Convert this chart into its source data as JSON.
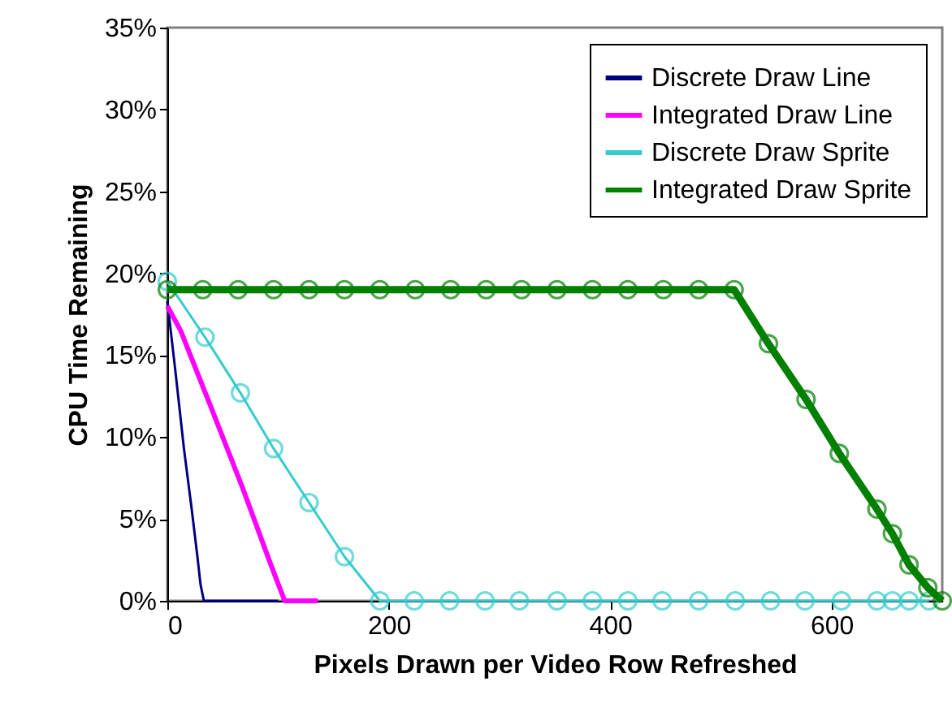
{
  "chart_data": {
    "type": "line",
    "xlabel": "Pixels Drawn per Video Row Refreshed",
    "ylabel": "CPU Time Remaining",
    "xlim": [
      0,
      700
    ],
    "xticks": [
      0,
      200,
      400,
      600
    ],
    "ylim": [
      0,
      35
    ],
    "yticks": [
      {
        "value": 0,
        "label": "0%"
      },
      {
        "value": 5,
        "label": "5%"
      },
      {
        "value": 10,
        "label": "10%"
      },
      {
        "value": 15,
        "label": "15%"
      },
      {
        "value": 20,
        "label": "20%"
      },
      {
        "value": 25,
        "label": "25%"
      },
      {
        "value": 30,
        "label": "30%"
      },
      {
        "value": 35,
        "label": "35%"
      }
    ],
    "grid": false,
    "legend": "top right",
    "series": [
      {
        "name": "Discrete Draw Line",
        "color": "#000080",
        "marker": "none",
        "x": [
          0,
          7,
          15,
          22,
          27,
          30,
          33,
          100
        ],
        "values": [
          18.3,
          14.2,
          9.3,
          5.6,
          2.8,
          1.0,
          0,
          0
        ]
      },
      {
        "name": "Integrated Draw Line",
        "color": "#ff00ff",
        "marker": "none",
        "x": [
          0,
          12,
          29,
          39,
          68,
          93,
          106,
          136
        ],
        "values": [
          18.0,
          16.5,
          13.6,
          11.9,
          6.9,
          2.3,
          0,
          0
        ]
      },
      {
        "name": "Discrete Draw Sprite",
        "color": "#33cccc",
        "marker": "circle",
        "x": [
          0,
          34,
          66,
          96,
          128,
          160,
          192,
          223,
          255,
          287,
          318,
          352,
          384,
          416,
          447,
          480,
          513,
          545,
          576,
          609,
          641,
          655,
          670,
          688
        ],
        "values": [
          19.5,
          16.1,
          12.7,
          9.3,
          6.0,
          2.7,
          0,
          0,
          0,
          0,
          0,
          0,
          0,
          0,
          0,
          0,
          0,
          0,
          0,
          0,
          0,
          0,
          0,
          0
        ]
      },
      {
        "name": "Integrated Draw Sprite",
        "color": "#008000",
        "marker": "circle",
        "x": [
          0,
          32,
          64,
          96,
          128,
          160,
          192,
          224,
          256,
          288,
          320,
          352,
          384,
          416,
          448,
          480,
          512,
          543,
          577,
          607,
          641,
          655,
          670,
          687,
          700
        ],
        "values": [
          19,
          19,
          19,
          19,
          19,
          19,
          19,
          19,
          19,
          19,
          19,
          19,
          19,
          19,
          19,
          19,
          19,
          15.7,
          12.3,
          9.0,
          5.6,
          4.1,
          2.2,
          0.8,
          0
        ]
      }
    ]
  }
}
